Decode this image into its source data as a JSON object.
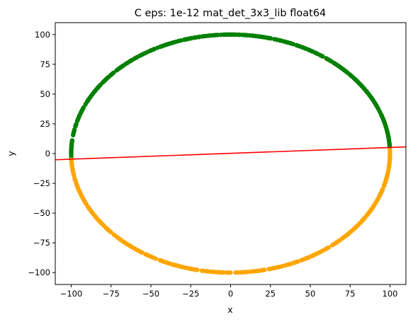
{
  "chart_data": {
    "type": "scatter",
    "title": "C eps: 1e-12 mat_det_3x3_lib float64",
    "xlabel": "x",
    "ylabel": "y",
    "xlim": [
      -110,
      110
    ],
    "ylim": [
      -110,
      110
    ],
    "xticks": [
      -100,
      -75,
      -50,
      -25,
      0,
      25,
      50,
      75,
      100
    ],
    "yticks": [
      -100,
      -75,
      -50,
      -25,
      0,
      25,
      50,
      75,
      100
    ],
    "grid": false,
    "circle_radius": 100,
    "series": [
      {
        "color": "#008000",
        "description": "points above the line",
        "marker": "circle"
      },
      {
        "color": "#ffa500",
        "description": "points below the line",
        "marker": "circle"
      }
    ],
    "line": {
      "color": "#ff0000",
      "x": [
        -110,
        110
      ],
      "y": [
        -5.2,
        5.6
      ]
    }
  }
}
